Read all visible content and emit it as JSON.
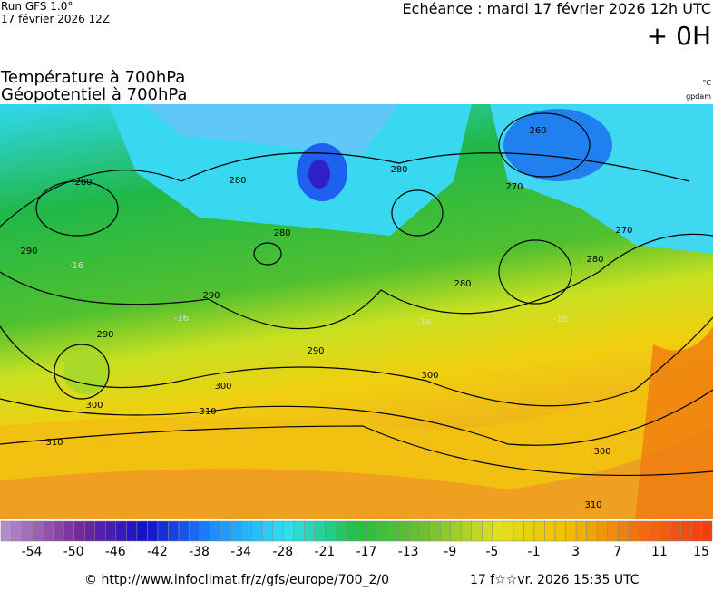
{
  "header": {
    "run": "Run GFS 1.0°",
    "run_date": "17 février 2026 12Z",
    "valid": "Echéance : mardi 17 février 2026 12h UTC",
    "lead": "+ 0H",
    "title_1": "Température à 700hPa",
    "title_2": "Géopotentiel à 700hPa",
    "unit_1": "°C",
    "unit_2": "gpdam"
  },
  "map": {
    "contour_labels": [
      "280",
      "280",
      "280",
      "280",
      "260",
      "270",
      "270",
      "280",
      "280",
      "290",
      "290",
      "290",
      "290",
      "300",
      "300",
      "300",
      "300",
      "310",
      "310",
      "310",
      "-16",
      "-16",
      "-16",
      "-16"
    ]
  },
  "colorbar": {
    "stops": [
      "#b48cc8",
      "#7a2a9a",
      "#1010c8",
      "#1e90ff",
      "#30e0f0",
      "#20c040",
      "#70c030",
      "#e0e020",
      "#f0c000",
      "#f07010",
      "#f04010"
    ],
    "labels": [
      -54,
      -50,
      -46,
      -42,
      -38,
      -34,
      -28,
      -21,
      -17,
      -13,
      -9,
      -5,
      -1,
      3,
      7,
      11,
      15
    ]
  },
  "footer": {
    "source": "© http://www.infoclimat.fr/z/gfs/europe/700_2/0",
    "generated": "17 f☆☆vr. 2026 15:35 UTC"
  }
}
